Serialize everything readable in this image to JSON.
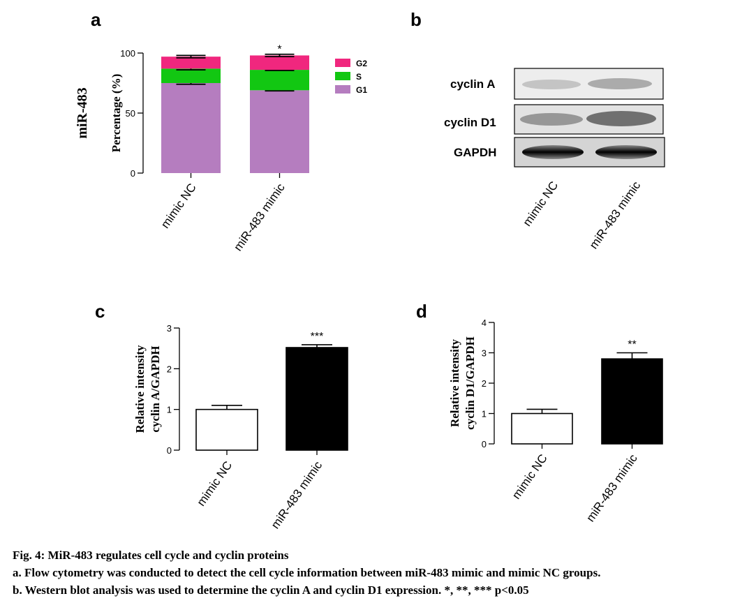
{
  "panel_letters": [
    "a",
    "b",
    "c",
    "d"
  ],
  "caption": {
    "title": "Fig. 4: MiR-483 regulates cell cycle and cyclin proteins",
    "line_a": "a. Flow cytometry was conducted to detect the cell cycle information between miR-483 mimic and mimic NC groups.",
    "line_b": "b. Western blot analysis was used to determine the cyclin A and cyclin D1 expression. *, **, *** p<0.05"
  },
  "blot": {
    "labels": [
      "cyclin A",
      "cyclin D1",
      "GAPDH"
    ],
    "lanes": [
      "mimic NC",
      "miR-483 mimic"
    ]
  },
  "chart_data": [
    {
      "panel": "a",
      "type": "bar",
      "stacked": true,
      "row_label": "miR-483",
      "ylabel": "Percentage (%)",
      "ylim": [
        0,
        100
      ],
      "yticks": [
        0,
        50,
        100
      ],
      "categories": [
        "mimic NC",
        "miR-483 mimic"
      ],
      "legend_position": "top-right",
      "series": [
        {
          "name": "G1",
          "values": [
            75,
            69
          ],
          "errors": [
            1,
            0.5
          ],
          "color": "#b57dbf"
        },
        {
          "name": "S",
          "values": [
            12,
            17
          ],
          "errors": [
            1,
            0.5
          ],
          "color": "#12c712"
        },
        {
          "name": "G2",
          "values": [
            10,
            12
          ],
          "errors": [
            1,
            1
          ],
          "color": "#f0277e"
        }
      ],
      "annotations": {
        "G2": [
          "",
          "*"
        ],
        "S": [
          "",
          "**"
        ]
      }
    },
    {
      "panel": "c",
      "type": "bar",
      "ylabel": "Relative intensity cyclin A/GAPDH",
      "ylabel_lines": [
        "Relative intensity",
        "cyclin A/GAPDH"
      ],
      "ylim": [
        0,
        3
      ],
      "yticks": [
        0,
        1,
        2,
        3
      ],
      "categories": [
        "mimic NC",
        "miR-483 mimic"
      ],
      "values": [
        1.0,
        2.52
      ],
      "errors": [
        0.1,
        0.07
      ],
      "fills": [
        "#ffffff",
        "#000000"
      ],
      "annotations": [
        "",
        "***"
      ]
    },
    {
      "panel": "d",
      "type": "bar",
      "ylabel": "Relative intensity cyclin D1/GAPDH",
      "ylabel_lines": [
        "Relative intensity",
        "cyclin D1/GAPDH"
      ],
      "ylim": [
        0,
        4
      ],
      "yticks": [
        0,
        1,
        2,
        3,
        4
      ],
      "categories": [
        "mimic NC",
        "miR-483 mimic"
      ],
      "values": [
        1.0,
        2.8
      ],
      "errors": [
        0.14,
        0.2
      ],
      "fills": [
        "#ffffff",
        "#000000"
      ],
      "annotations": [
        "",
        "**"
      ]
    }
  ]
}
